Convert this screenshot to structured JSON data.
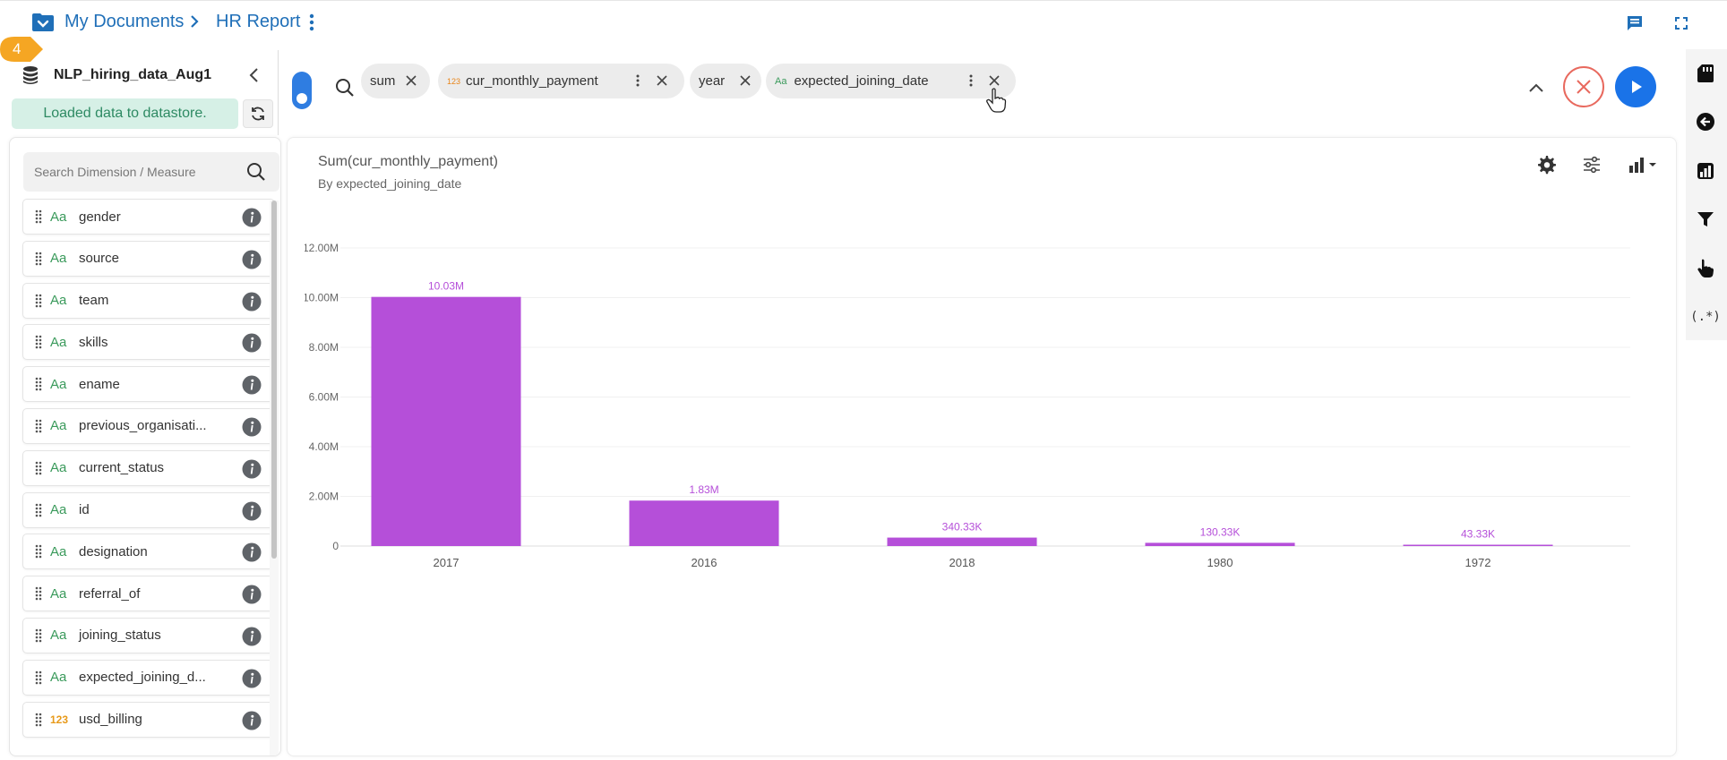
{
  "breadcrumb": {
    "root": "My Documents",
    "current": "HR Report"
  },
  "step_badge": "4",
  "datasource": {
    "name": "NLP_hiring_data_Aug1",
    "status": "Loaded data to datastore."
  },
  "field_search": {
    "placeholder": "Search Dimension / Measure"
  },
  "fields": [
    {
      "type": "Aa",
      "name": "gender"
    },
    {
      "type": "Aa",
      "name": "source"
    },
    {
      "type": "Aa",
      "name": "team"
    },
    {
      "type": "Aa",
      "name": "skills"
    },
    {
      "type": "Aa",
      "name": "ename"
    },
    {
      "type": "Aa",
      "name": "previous_organisati..."
    },
    {
      "type": "Aa",
      "name": "current_status"
    },
    {
      "type": "Aa",
      "name": "id"
    },
    {
      "type": "Aa",
      "name": "designation"
    },
    {
      "type": "Aa",
      "name": "referral_of"
    },
    {
      "type": "Aa",
      "name": "joining_status"
    },
    {
      "type": "Aa",
      "name": "expected_joining_d..."
    },
    {
      "type": "123",
      "name": "usd_billing"
    }
  ],
  "query_chips": [
    {
      "label": "sum"
    },
    {
      "badge": "123",
      "label": "cur_monthly_payment"
    },
    {
      "label": "year"
    },
    {
      "badge": "Aa",
      "label": "expected_joining_date"
    }
  ],
  "right_rail": {
    "regex_label": "(.*)"
  },
  "colors": {
    "bar": "#b54fd9",
    "accent_blue": "#1a73e8",
    "badge_orange": "#f5a623",
    "cancel_red": "#e8695e",
    "status_green": "#2e8a63"
  },
  "chart_data": {
    "type": "bar",
    "title": "Sum(cur_monthly_payment)",
    "subtitle": "By expected_joining_date",
    "categories": [
      "2017",
      "2016",
      "2018",
      "1980",
      "1972"
    ],
    "values": [
      10030000,
      1830000,
      340330,
      130330,
      43330
    ],
    "data_labels": [
      "10.03M",
      "1.83M",
      "340.33K",
      "130.33K",
      "43.33K"
    ],
    "ylim": [
      0,
      12000000
    ],
    "y_ticks": [
      0,
      2000000,
      4000000,
      6000000,
      8000000,
      10000000,
      12000000
    ],
    "y_tick_labels": [
      "0",
      "2.00M",
      "4.00M",
      "6.00M",
      "8.00M",
      "10.00M",
      "12.00M"
    ],
    "grid": true
  }
}
